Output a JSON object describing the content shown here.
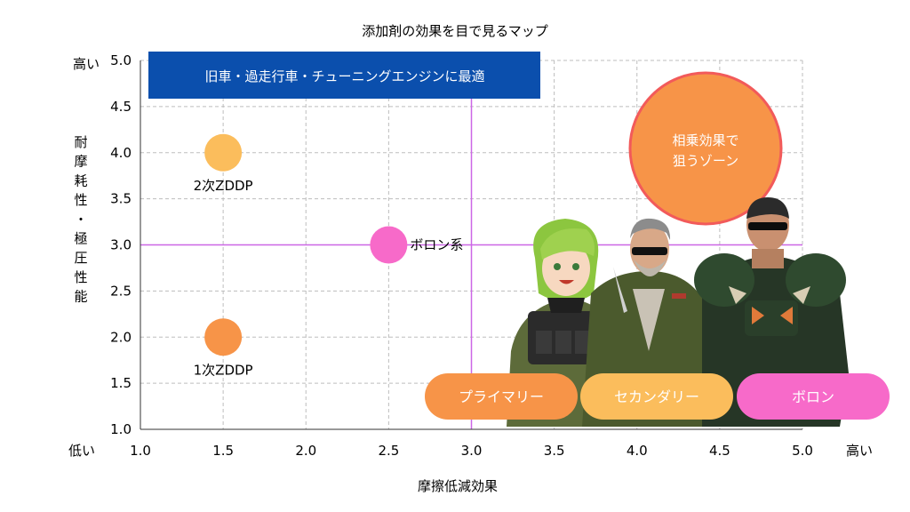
{
  "chart_data": {
    "type": "scatter",
    "title": "添加剤の効果を目で見るマップ",
    "xlabel": "摩擦低減効果",
    "ylabel": "耐摩耗性・極圧性能",
    "xlim": [
      1.0,
      5.0
    ],
    "ylim": [
      1.0,
      5.0
    ],
    "xticks": [
      "1.0",
      "1.5",
      "2.0",
      "2.5",
      "3.0",
      "3.5",
      "4.0",
      "4.5",
      "5.0"
    ],
    "yticks": [
      "1.0",
      "1.5",
      "2.0",
      "2.5",
      "3.0",
      "3.5",
      "4.0",
      "4.5",
      "5.0"
    ],
    "x_low": "低い",
    "x_high": "高い",
    "y_low": "低い",
    "y_high": "高い",
    "grid": true,
    "reference_lines": {
      "x": 3.0,
      "y": 3.0,
      "color": "#cc66e6"
    },
    "points": [
      {
        "label": "2次ZDDP",
        "x": 1.5,
        "y": 4.0,
        "color": "#fbbd5c",
        "label_pos": "below"
      },
      {
        "label": "1次ZDDP",
        "x": 1.5,
        "y": 2.0,
        "color": "#f79448",
        "label_pos": "below"
      },
      {
        "label": "ボロン系",
        "x": 2.5,
        "y": 3.0,
        "color": "#f76ac9",
        "label_pos": "right"
      }
    ],
    "annotations": [
      {
        "text": "旧車・過走行車・チューニングエンジンに最適",
        "style": "banner",
        "color": "#0b4fad"
      },
      {
        "text_lines": [
          "相乗効果で",
          "狙うゾーン"
        ],
        "style": "circle",
        "color": "#f79448",
        "border": "#f25a5a"
      }
    ],
    "legend": [
      {
        "text": "プライマリー",
        "color": "#f79448"
      },
      {
        "text": "セカンダリー",
        "color": "#fbbd5c"
      },
      {
        "text": "ボロン",
        "color": "#f76ac9"
      }
    ]
  },
  "illustration": {
    "characters": [
      "anime-girl-green-hair",
      "old-soldier-sunglasses",
      "armored-soldier"
    ]
  }
}
